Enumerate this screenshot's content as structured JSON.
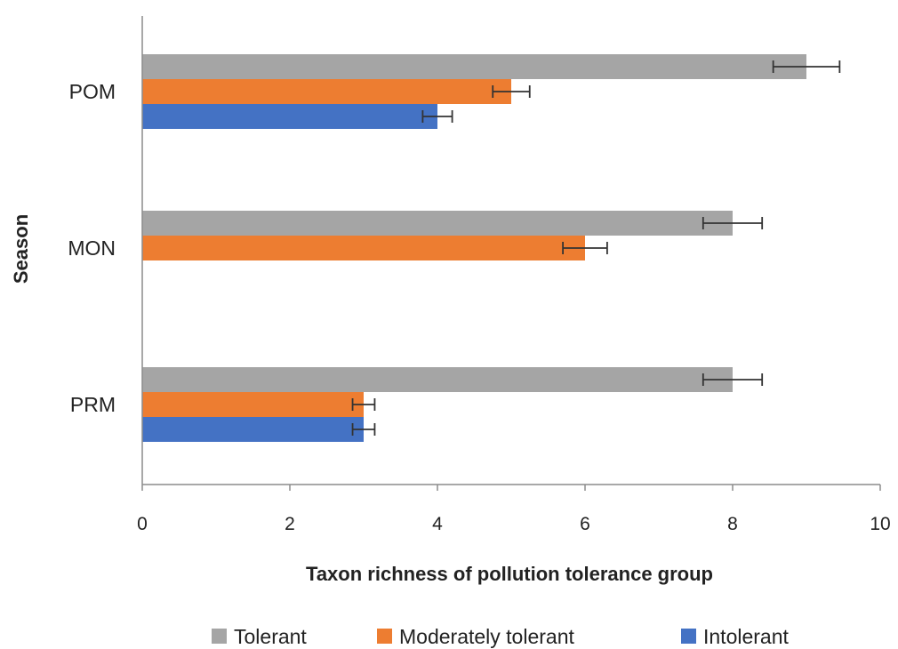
{
  "chart_data": {
    "type": "bar",
    "orientation": "horizontal",
    "title": "",
    "xlabel": "Taxon richness of pollution tolerance group",
    "ylabel": "Season",
    "xlim": [
      0,
      10
    ],
    "xticks": [
      "0",
      "2",
      "4",
      "6",
      "8",
      "10"
    ],
    "categories": [
      "POM",
      "MON",
      "PRM"
    ],
    "series": [
      {
        "name": "Tolerant",
        "color": "#a5a5a5",
        "values": [
          9,
          8,
          8
        ],
        "errors": [
          0.45,
          0.4,
          0.4
        ]
      },
      {
        "name": "Moderately tolerant",
        "color": "#ed7d31",
        "values": [
          5,
          6,
          3
        ],
        "errors": [
          0.25,
          0.3,
          0.15
        ]
      },
      {
        "name": "Intolerant",
        "color": "#4472c4",
        "values": [
          4,
          null,
          3
        ],
        "errors": [
          0.2,
          null,
          0.15
        ]
      }
    ],
    "grid": false,
    "legend_position": "bottom"
  }
}
